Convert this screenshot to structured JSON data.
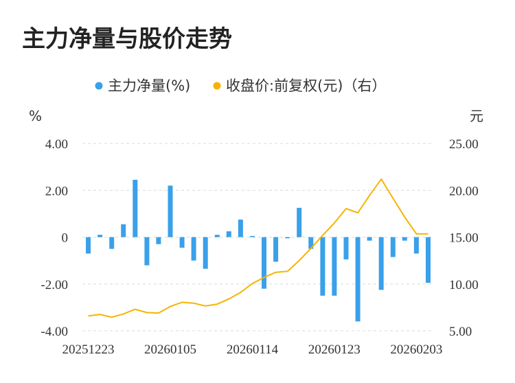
{
  "chart_data": {
    "type": "bar",
    "title": "主力净量与股价走势",
    "legend": [
      {
        "label": "主力净量(%)",
        "color": "#3aa0ea"
      },
      {
        "label": "收盘价:前复权(元)（右）",
        "color": "#f5b400"
      }
    ],
    "legend_position": "top-center",
    "left_unit": "%",
    "right_unit": "元",
    "left_ticks": [
      "4.00",
      "2.00",
      "0",
      "-2.00",
      "-4.00"
    ],
    "right_ticks": [
      "25.00",
      "20.00",
      "15.00",
      "10.00",
      "5.00"
    ],
    "ylim_left": [
      -4,
      4
    ],
    "ylim_right": [
      5,
      25
    ],
    "grid": true,
    "x_tick_labels": [
      "20251223",
      "20260105",
      "20260114",
      "20260123",
      "20260203"
    ],
    "x_tick_index": [
      0,
      7,
      14,
      21,
      28
    ],
    "series": [
      {
        "name": "主力净量(%)",
        "type": "bar",
        "axis": "left",
        "color": "#3aa0ea",
        "values": [
          -0.7,
          0.1,
          -0.5,
          0.55,
          2.45,
          -1.2,
          -0.3,
          2.2,
          -0.45,
          -1.0,
          -1.35,
          0.1,
          0.25,
          0.75,
          0.05,
          -2.2,
          -1.05,
          -0.05,
          1.25,
          -0.5,
          -2.5,
          -2.5,
          -0.95,
          -3.6,
          -0.15,
          -2.25,
          -0.85,
          -0.15,
          -0.7,
          -1.95
        ]
      },
      {
        "name": "收盘价:前复权(元)（右）",
        "type": "line",
        "axis": "right",
        "color": "#f5b400",
        "values": [
          6.6,
          6.75,
          6.45,
          6.8,
          7.3,
          6.95,
          6.9,
          7.6,
          8.05,
          7.95,
          7.65,
          7.85,
          8.4,
          9.1,
          10.05,
          10.7,
          11.25,
          11.35,
          12.5,
          13.8,
          15.2,
          16.5,
          18.05,
          17.6,
          19.45,
          21.2,
          19.15,
          17.15,
          15.35,
          15.35
        ]
      }
    ]
  }
}
